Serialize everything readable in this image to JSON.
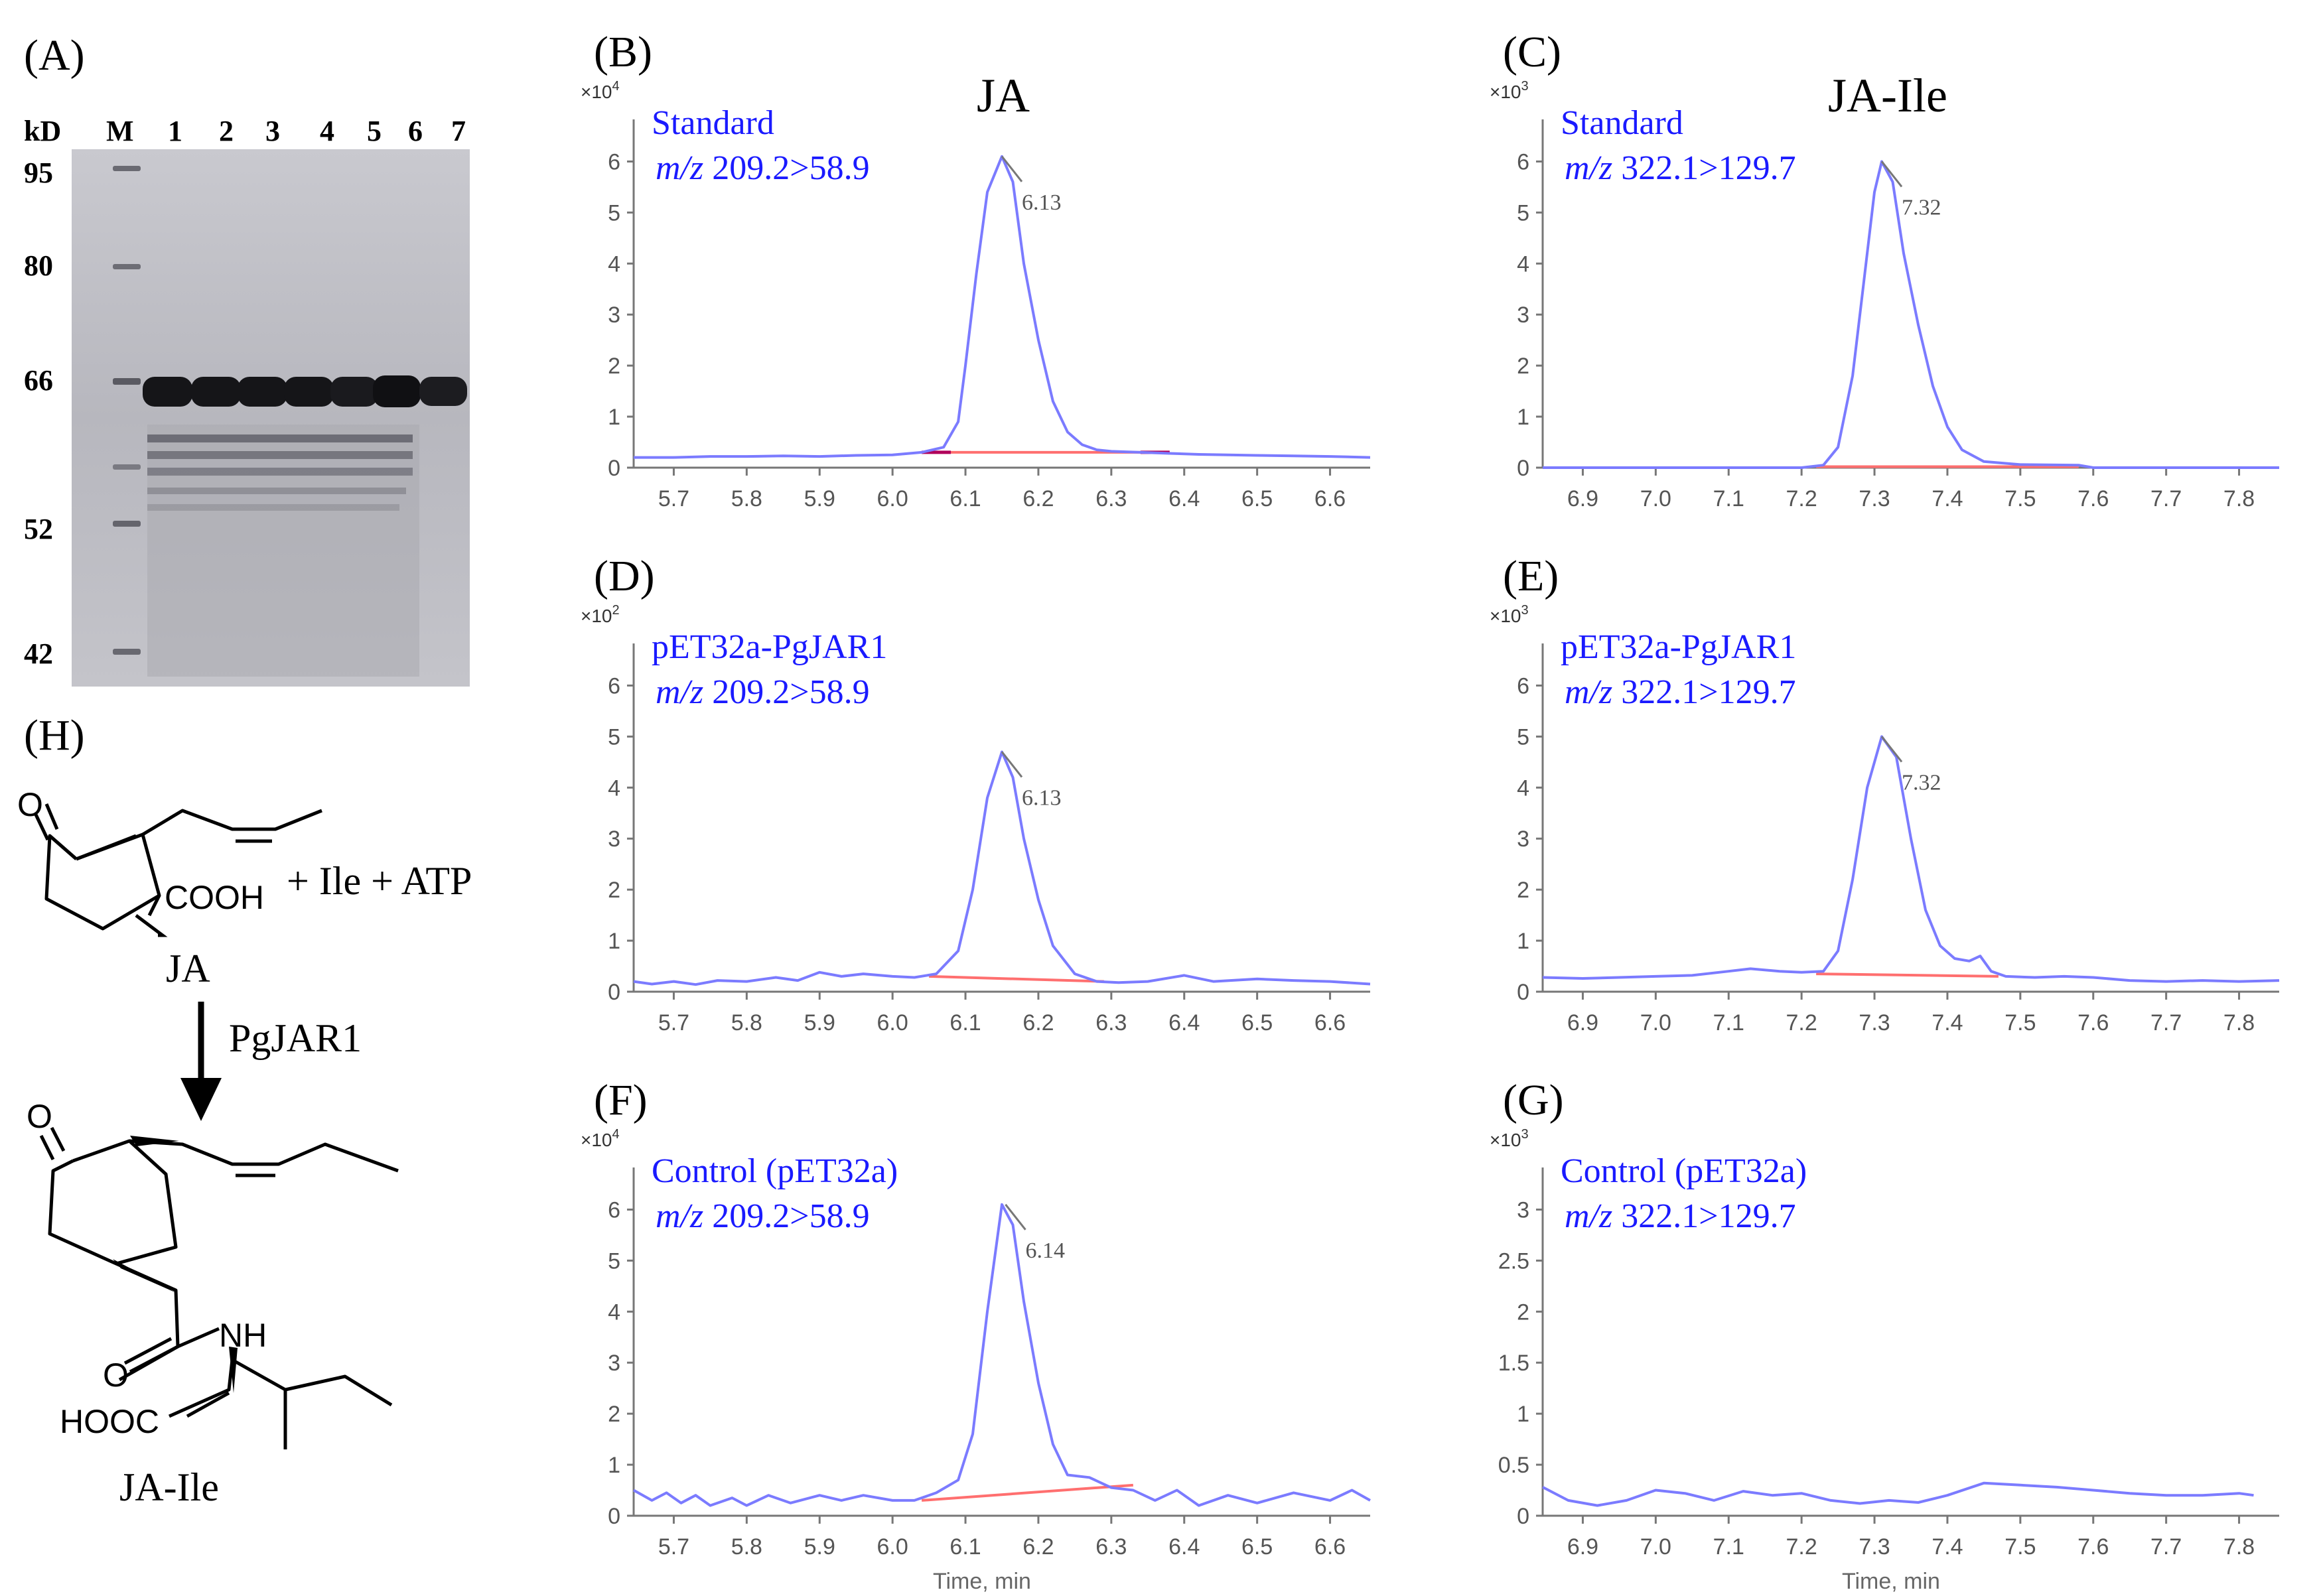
{
  "colors": {
    "trace": "#7b7bff",
    "baseline": "#ff6f6f",
    "baseline_dark": "#b0005a",
    "legend": "#1a1aff",
    "axis": "#777777"
  },
  "panel_a": {
    "letter": "(A)",
    "unit": "kD",
    "ladder_label": "M",
    "lanes": [
      "1",
      "2",
      "3",
      "4",
      "5",
      "6",
      "7"
    ],
    "markers": [
      "95",
      "80",
      "66",
      "52",
      "42"
    ]
  },
  "panel_h": {
    "letter": "(H)",
    "substrate_label": "JA",
    "reagents": "+ Ile + ATP",
    "cooh": "COOH",
    "enzyme": "PgJAR1",
    "product_label": "JA-Ile",
    "atom_o": "O",
    "atom_nh": "NH",
    "atom_hooc": "HOOC"
  },
  "column_titles": [
    "JA",
    "JA-Ile"
  ],
  "chart_data": [
    {
      "panel": "(B)",
      "type": "line",
      "title": "",
      "exponent_prefix": "×10",
      "exponent_power": "4",
      "legend": [
        "Standard",
        "209.2>58.9"
      ],
      "mz_prefix": "m/z",
      "x_ticks": [
        "5.7",
        "5.8",
        "5.9",
        "6.0",
        "6.1",
        "6.2",
        "6.3",
        "6.4",
        "6.5",
        "6.6"
      ],
      "y_ticks": [
        "0",
        "1",
        "2",
        "3",
        "4",
        "5",
        "6"
      ],
      "xlim": [
        5.645,
        6.655
      ],
      "ylim": [
        0,
        6.5
      ],
      "peak_label": "6.13",
      "peak_x": 6.15,
      "peak_y": 6.1,
      "baseline": {
        "x": [
          6.04,
          6.38
        ],
        "y": [
          0.3,
          0.3
        ],
        "highlight": true
      },
      "series": [
        {
          "name": "JA standard",
          "points": [
            [
              5.645,
              0.2
            ],
            [
              5.7,
              0.2
            ],
            [
              5.75,
              0.22
            ],
            [
              5.8,
              0.22
            ],
            [
              5.85,
              0.23
            ],
            [
              5.9,
              0.22
            ],
            [
              5.95,
              0.24
            ],
            [
              6.0,
              0.25
            ],
            [
              6.04,
              0.3
            ],
            [
              6.07,
              0.4
            ],
            [
              6.09,
              0.9
            ],
            [
              6.1,
              2.0
            ],
            [
              6.115,
              3.8
            ],
            [
              6.13,
              5.4
            ],
            [
              6.15,
              6.1
            ],
            [
              6.165,
              5.6
            ],
            [
              6.18,
              4.0
            ],
            [
              6.2,
              2.5
            ],
            [
              6.22,
              1.3
            ],
            [
              6.24,
              0.7
            ],
            [
              6.26,
              0.45
            ],
            [
              6.28,
              0.35
            ],
            [
              6.3,
              0.32
            ],
            [
              6.34,
              0.3
            ],
            [
              6.38,
              0.28
            ],
            [
              6.42,
              0.26
            ],
            [
              6.46,
              0.25
            ],
            [
              6.5,
              0.24
            ],
            [
              6.55,
              0.23
            ],
            [
              6.6,
              0.22
            ],
            [
              6.655,
              0.2
            ]
          ]
        }
      ]
    },
    {
      "panel": "(C)",
      "type": "line",
      "title": "",
      "exponent_prefix": "×10",
      "exponent_power": "3",
      "legend": [
        "Standard",
        "322.1>129.7"
      ],
      "mz_prefix": "m/z",
      "x_ticks": [
        "6.9",
        "7.0",
        "7.1",
        "7.2",
        "7.3",
        "7.4",
        "7.5",
        "7.6",
        "7.7",
        "7.8"
      ],
      "y_ticks": [
        "0",
        "1",
        "2",
        "3",
        "4",
        "5",
        "6"
      ],
      "xlim": [
        6.845,
        7.855
      ],
      "ylim": [
        0,
        6.5
      ],
      "peak_label": "7.32",
      "peak_x": 7.31,
      "peak_y": 6.0,
      "baseline": {
        "x": [
          7.22,
          7.58
        ],
        "y": [
          0.02,
          0.02
        ],
        "highlight": false
      },
      "series": [
        {
          "name": "JA-Ile standard",
          "points": [
            [
              6.845,
              0.0
            ],
            [
              7.0,
              0.0
            ],
            [
              7.1,
              0.0
            ],
            [
              7.2,
              0.0
            ],
            [
              7.23,
              0.05
            ],
            [
              7.25,
              0.4
            ],
            [
              7.27,
              1.8
            ],
            [
              7.285,
              3.6
            ],
            [
              7.3,
              5.4
            ],
            [
              7.31,
              6.0
            ],
            [
              7.325,
              5.6
            ],
            [
              7.34,
              4.2
            ],
            [
              7.36,
              2.8
            ],
            [
              7.38,
              1.6
            ],
            [
              7.4,
              0.8
            ],
            [
              7.42,
              0.35
            ],
            [
              7.45,
              0.12
            ],
            [
              7.5,
              0.06
            ],
            [
              7.58,
              0.05
            ],
            [
              7.6,
              0.0
            ],
            [
              7.7,
              0.0
            ],
            [
              7.855,
              0.0
            ]
          ]
        }
      ]
    },
    {
      "panel": "(D)",
      "type": "line",
      "title": "",
      "exponent_prefix": "×10",
      "exponent_power": "2",
      "legend": [
        "pET32a-PgJAR1",
        "209.2>58.9"
      ],
      "mz_prefix": "m/z",
      "x_ticks": [
        "5.7",
        "5.8",
        "5.9",
        "6.0",
        "6.1",
        "6.2",
        "6.3",
        "6.4",
        "6.5",
        "6.6"
      ],
      "y_ticks": [
        "0",
        "1",
        "2",
        "3",
        "4",
        "5",
        "6"
      ],
      "xlim": [
        5.645,
        6.655
      ],
      "ylim": [
        0,
        6.5
      ],
      "peak_label": "6.13",
      "peak_x": 6.15,
      "peak_y": 4.7,
      "baseline": {
        "x": [
          6.05,
          6.29
        ],
        "y": [
          0.3,
          0.2
        ],
        "highlight": false
      },
      "series": [
        {
          "name": "PgJAR1 reaction JA",
          "points": [
            [
              5.645,
              0.2
            ],
            [
              5.67,
              0.15
            ],
            [
              5.7,
              0.2
            ],
            [
              5.73,
              0.14
            ],
            [
              5.76,
              0.22
            ],
            [
              5.8,
              0.2
            ],
            [
              5.84,
              0.28
            ],
            [
              5.87,
              0.22
            ],
            [
              5.9,
              0.38
            ],
            [
              5.93,
              0.3
            ],
            [
              5.96,
              0.35
            ],
            [
              6.0,
              0.3
            ],
            [
              6.03,
              0.28
            ],
            [
              6.06,
              0.35
            ],
            [
              6.09,
              0.8
            ],
            [
              6.11,
              2.0
            ],
            [
              6.13,
              3.8
            ],
            [
              6.15,
              4.7
            ],
            [
              6.165,
              4.2
            ],
            [
              6.18,
              3.0
            ],
            [
              6.2,
              1.8
            ],
            [
              6.22,
              0.9
            ],
            [
              6.25,
              0.35
            ],
            [
              6.28,
              0.2
            ],
            [
              6.31,
              0.18
            ],
            [
              6.35,
              0.2
            ],
            [
              6.4,
              0.32
            ],
            [
              6.44,
              0.2
            ],
            [
              6.5,
              0.25
            ],
            [
              6.55,
              0.22
            ],
            [
              6.6,
              0.2
            ],
            [
              6.655,
              0.15
            ]
          ]
        }
      ]
    },
    {
      "panel": "(E)",
      "type": "line",
      "title": "",
      "exponent_prefix": "×10",
      "exponent_power": "3",
      "legend": [
        "pET32a-PgJAR1",
        "322.1>129.7"
      ],
      "mz_prefix": "m/z",
      "x_ticks": [
        "6.9",
        "7.0",
        "7.1",
        "7.2",
        "7.3",
        "7.4",
        "7.5",
        "7.6",
        "7.7",
        "7.8"
      ],
      "y_ticks": [
        "0",
        "1",
        "2",
        "3",
        "4",
        "5",
        "6"
      ],
      "xlim": [
        6.845,
        7.855
      ],
      "ylim": [
        0,
        6.5
      ],
      "peak_label": "7.32",
      "peak_x": 7.31,
      "peak_y": 5.0,
      "baseline": {
        "x": [
          7.22,
          7.47
        ],
        "y": [
          0.35,
          0.3
        ],
        "highlight": false
      },
      "series": [
        {
          "name": "PgJAR1 reaction JA-Ile",
          "points": [
            [
              6.845,
              0.28
            ],
            [
              6.9,
              0.26
            ],
            [
              6.95,
              0.28
            ],
            [
              7.0,
              0.3
            ],
            [
              7.05,
              0.32
            ],
            [
              7.1,
              0.4
            ],
            [
              7.13,
              0.45
            ],
            [
              7.17,
              0.4
            ],
            [
              7.2,
              0.38
            ],
            [
              7.23,
              0.4
            ],
            [
              7.25,
              0.8
            ],
            [
              7.27,
              2.2
            ],
            [
              7.29,
              4.0
            ],
            [
              7.31,
              5.0
            ],
            [
              7.33,
              4.6
            ],
            [
              7.35,
              3.0
            ],
            [
              7.37,
              1.6
            ],
            [
              7.39,
              0.9
            ],
            [
              7.41,
              0.65
            ],
            [
              7.43,
              0.6
            ],
            [
              7.445,
              0.7
            ],
            [
              7.46,
              0.4
            ],
            [
              7.48,
              0.3
            ],
            [
              7.52,
              0.28
            ],
            [
              7.56,
              0.3
            ],
            [
              7.6,
              0.28
            ],
            [
              7.65,
              0.22
            ],
            [
              7.7,
              0.2
            ],
            [
              7.75,
              0.22
            ],
            [
              7.8,
              0.2
            ],
            [
              7.855,
              0.22
            ]
          ]
        }
      ]
    },
    {
      "panel": "(F)",
      "type": "line",
      "title": "",
      "exponent_prefix": "×10",
      "exponent_power": "4",
      "legend": [
        "Control  (pET32a)",
        "209.2>58.9"
      ],
      "mz_prefix": "m/z",
      "x_ticks": [
        "5.7",
        "5.8",
        "5.9",
        "6.0",
        "6.1",
        "6.2",
        "6.3",
        "6.4",
        "6.5",
        "6.6"
      ],
      "y_ticks": [
        "0",
        "1",
        "2",
        "3",
        "4",
        "5",
        "6"
      ],
      "xlim": [
        5.645,
        6.655
      ],
      "ylim": [
        0,
        6.5
      ],
      "xlabel": "Time, min",
      "peak_label": "6.14",
      "peak_x": 6.155,
      "peak_y": 6.1,
      "baseline": {
        "x": [
          6.04,
          6.33
        ],
        "y": [
          0.3,
          0.6
        ],
        "highlight": false
      },
      "series": [
        {
          "name": "Control JA",
          "points": [
            [
              5.645,
              0.5
            ],
            [
              5.67,
              0.3
            ],
            [
              5.69,
              0.45
            ],
            [
              5.71,
              0.25
            ],
            [
              5.73,
              0.4
            ],
            [
              5.75,
              0.2
            ],
            [
              5.78,
              0.35
            ],
            [
              5.8,
              0.2
            ],
            [
              5.83,
              0.4
            ],
            [
              5.86,
              0.25
            ],
            [
              5.9,
              0.4
            ],
            [
              5.93,
              0.3
            ],
            [
              5.96,
              0.4
            ],
            [
              6.0,
              0.3
            ],
            [
              6.03,
              0.3
            ],
            [
              6.06,
              0.45
            ],
            [
              6.09,
              0.7
            ],
            [
              6.11,
              1.6
            ],
            [
              6.13,
              4.0
            ],
            [
              6.15,
              6.1
            ],
            [
              6.165,
              5.7
            ],
            [
              6.18,
              4.2
            ],
            [
              6.2,
              2.6
            ],
            [
              6.22,
              1.4
            ],
            [
              6.24,
              0.8
            ],
            [
              6.27,
              0.75
            ],
            [
              6.3,
              0.55
            ],
            [
              6.33,
              0.5
            ],
            [
              6.36,
              0.3
            ],
            [
              6.39,
              0.5
            ],
            [
              6.42,
              0.2
            ],
            [
              6.46,
              0.4
            ],
            [
              6.5,
              0.25
            ],
            [
              6.55,
              0.45
            ],
            [
              6.6,
              0.3
            ],
            [
              6.63,
              0.5
            ],
            [
              6.655,
              0.3
            ]
          ]
        }
      ]
    },
    {
      "panel": "(G)",
      "type": "line",
      "title": "",
      "exponent_prefix": "×10",
      "exponent_power": "3",
      "legend": [
        "Control  (pET32a)",
        "322.1>129.7"
      ],
      "mz_prefix": "m/z",
      "x_ticks": [
        "6.9",
        "7.0",
        "7.1",
        "7.2",
        "7.3",
        "7.4",
        "7.5",
        "7.6",
        "7.7",
        "7.8"
      ],
      "y_ticks": [
        "0",
        "0.5",
        "1",
        "1.5",
        "2",
        "2.5",
        "3"
      ],
      "xlim": [
        6.845,
        7.855
      ],
      "ylim": [
        0,
        3.25
      ],
      "xlabel": "Time, min",
      "series": [
        {
          "name": "Control JA-Ile",
          "points": [
            [
              6.845,
              0.28
            ],
            [
              6.88,
              0.15
            ],
            [
              6.92,
              0.1
            ],
            [
              6.96,
              0.15
            ],
            [
              7.0,
              0.25
            ],
            [
              7.04,
              0.22
            ],
            [
              7.08,
              0.15
            ],
            [
              7.12,
              0.24
            ],
            [
              7.16,
              0.2
            ],
            [
              7.2,
              0.22
            ],
            [
              7.24,
              0.15
            ],
            [
              7.28,
              0.12
            ],
            [
              7.32,
              0.15
            ],
            [
              7.36,
              0.13
            ],
            [
              7.4,
              0.2
            ],
            [
              7.45,
              0.32
            ],
            [
              7.5,
              0.3
            ],
            [
              7.55,
              0.28
            ],
            [
              7.6,
              0.25
            ],
            [
              7.65,
              0.22
            ],
            [
              7.7,
              0.2
            ],
            [
              7.75,
              0.2
            ],
            [
              7.8,
              0.22
            ],
            [
              7.82,
              0.2
            ]
          ]
        }
      ]
    }
  ]
}
